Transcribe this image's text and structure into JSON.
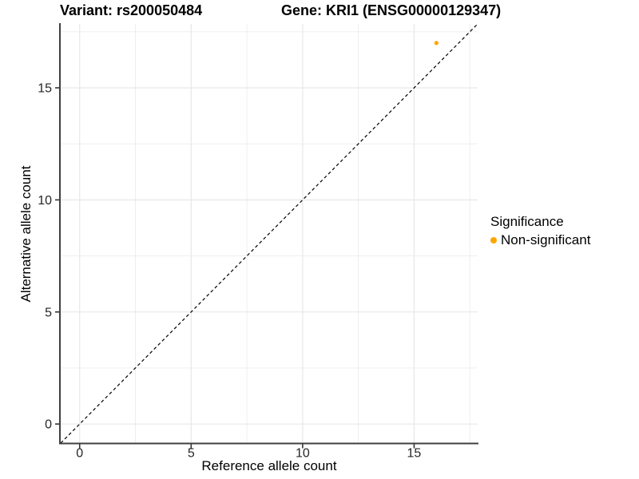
{
  "chart_data": {
    "type": "scatter",
    "title_variant": "Variant: rs200050484",
    "title_gene": "Gene: KRI1 (ENSG00000129347)",
    "xlabel": "Reference allele count",
    "ylabel": "Alternative allele count",
    "xlim": [
      -0.85,
      17.85
    ],
    "ylim": [
      -0.85,
      17.85
    ],
    "x_ticks": [
      0,
      5,
      10,
      15
    ],
    "y_ticks": [
      0,
      5,
      10,
      15
    ],
    "minor_grid_step": 2.5,
    "grid": true,
    "points": [
      {
        "x": 16,
        "y": 17,
        "series": "Non-significant"
      }
    ],
    "reference_line": {
      "type": "identity y=x",
      "slope": 1,
      "intercept": 0,
      "style": "dashed",
      "color": "#000000"
    },
    "legend": {
      "title": "Significance",
      "position": "right",
      "items": [
        {
          "label": "Non-significant",
          "color": "#FFA500"
        }
      ]
    },
    "colors": {
      "point": "#FFA500",
      "grid_major": "#E5E5E5",
      "grid_minor": "#ECECEC",
      "axis_line": "#404040",
      "tick": "#333333",
      "tick_label": "#262626",
      "background": "#FFFFFF"
    }
  }
}
